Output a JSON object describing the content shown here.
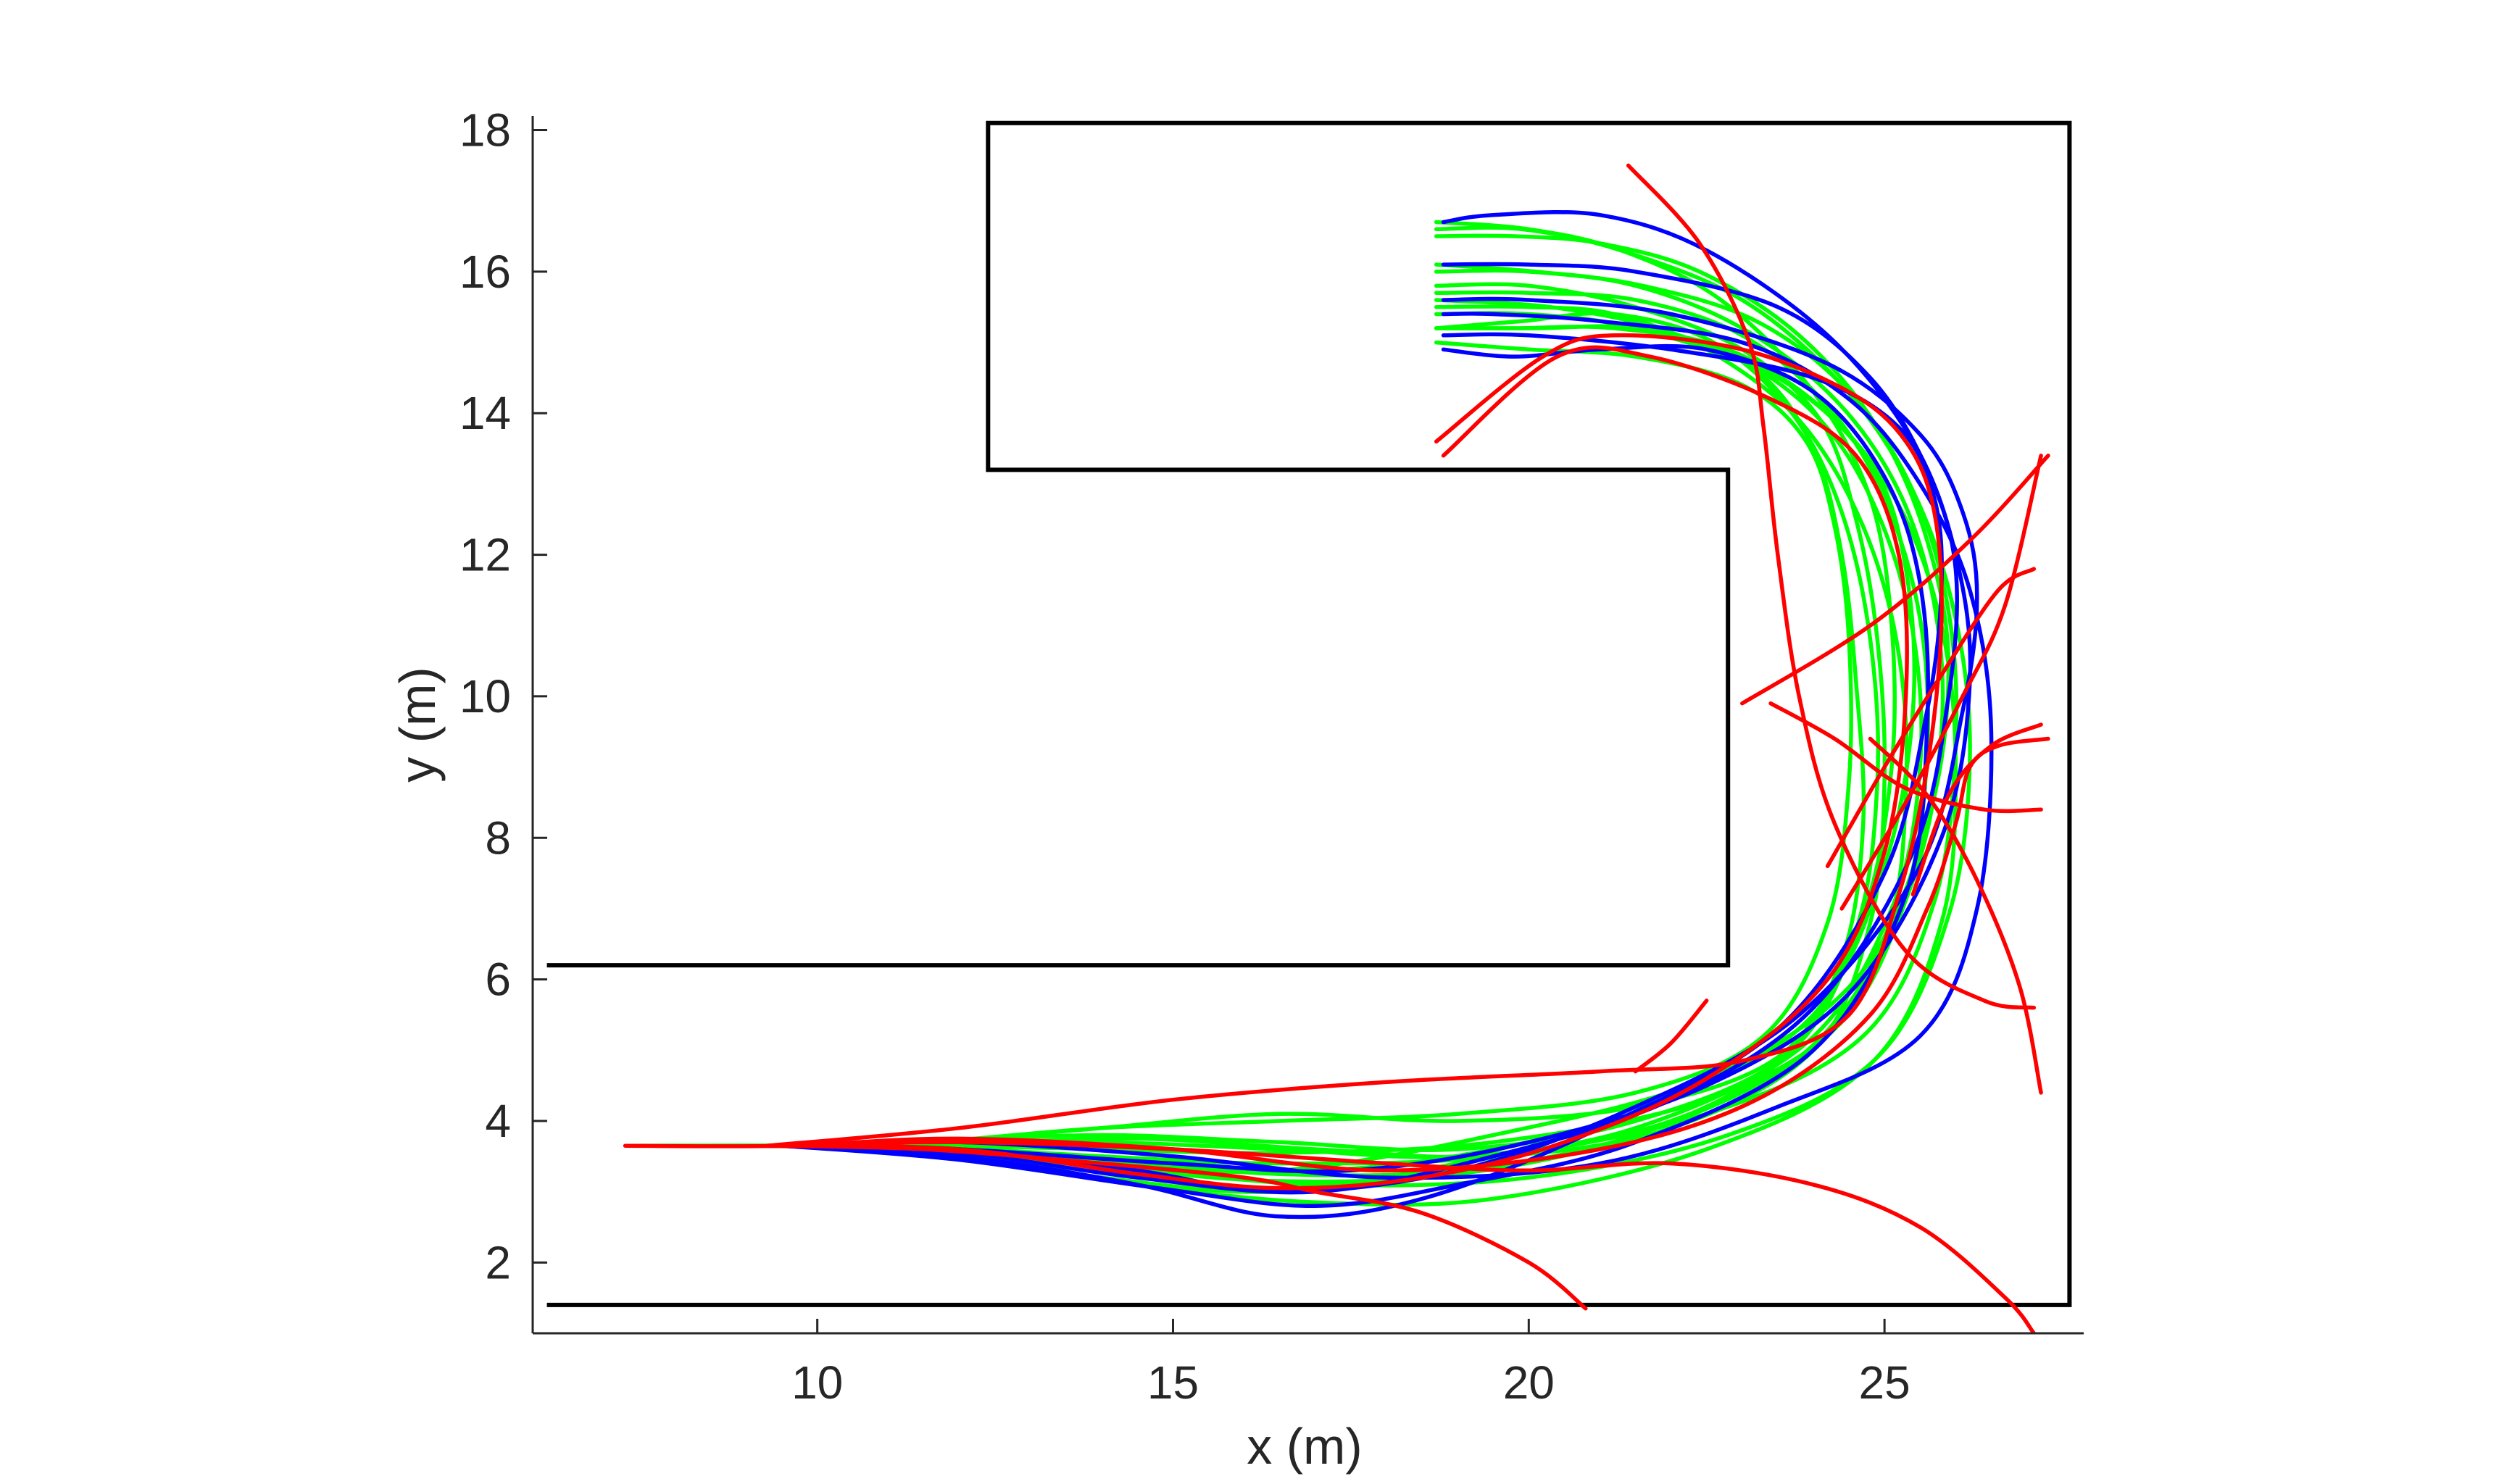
{
  "chart_data": {
    "type": "line",
    "xlabel": "x (m)",
    "ylabel": "y (m)",
    "xlim": [
      6,
      27.8
    ],
    "ylim": [
      1,
      18.2
    ],
    "xticks": [
      10,
      15,
      20,
      25
    ],
    "yticks": [
      2,
      4,
      6,
      8,
      10,
      12,
      14,
      16,
      18
    ],
    "grid": false,
    "colors": {
      "axis": "#262626",
      "wall": "#000000",
      "blue": "#0000ff",
      "green": "#00ff00",
      "red": "#ff0000"
    },
    "walls": [
      {
        "x": [
          6.2,
          22.8,
          22.8,
          12.4,
          12.4,
          27.6,
          27.6,
          6.2
        ],
        "y": [
          6.2,
          6.2,
          13.2,
          13.2,
          18.1,
          18.1,
          1.4,
          1.4
        ]
      }
    ],
    "series": [
      {
        "color": "blue",
        "x": [
          9.5,
          12,
          14.5,
          16.5,
          18.5,
          21,
          23.5,
          25,
          25.6,
          25.8,
          25.7,
          25.2,
          24,
          22,
          20,
          18.8
        ],
        "y": [
          3.65,
          3.5,
          3.1,
          2.65,
          2.9,
          3.9,
          5.3,
          7.5,
          9.8,
          11.5,
          12.8,
          13.8,
          14.5,
          14.9,
          15.1,
          15.1
        ]
      },
      {
        "color": "blue",
        "x": [
          9.5,
          12,
          14.5,
          16.5,
          19,
          21.5,
          23.8,
          25.5,
          26.1,
          26.3,
          26.1,
          25.5,
          24.2,
          22,
          20,
          18.8
        ],
        "y": [
          3.65,
          3.6,
          3.3,
          3.0,
          3.3,
          4.2,
          5.5,
          7.6,
          9.8,
          11.4,
          12.6,
          13.7,
          14.7,
          15.4,
          15.6,
          15.6
        ]
      },
      {
        "color": "blue",
        "x": [
          9.5,
          12,
          14.5,
          17,
          19.5,
          22,
          24,
          25.4,
          25.9,
          26.0,
          25.6,
          24.8,
          23.5,
          21.5,
          20,
          18.8
        ],
        "y": [
          3.65,
          3.55,
          3.2,
          3.0,
          3.5,
          4.3,
          5.6,
          7.8,
          10.0,
          11.8,
          13.2,
          14.5,
          15.5,
          16.0,
          16.1,
          16.1
        ]
      },
      {
        "color": "blue",
        "x": [
          9.5,
          12,
          15,
          17.5,
          20,
          22.5,
          24.5,
          25.8,
          26.2,
          26.0,
          25.4,
          24.2,
          22.5,
          21,
          19.5,
          18.8
        ],
        "y": [
          3.65,
          3.6,
          3.4,
          3.3,
          3.7,
          4.5,
          5.8,
          8.0,
          10.2,
          12.0,
          13.6,
          15.1,
          16.3,
          16.8,
          16.8,
          16.7
        ]
      },
      {
        "color": "blue",
        "x": [
          9.5,
          12,
          15,
          18,
          21,
          23.5,
          25.5,
          26.3,
          26.5,
          26.2,
          25.5,
          24.5,
          23,
          21,
          19.5,
          18.8
        ],
        "y": [
          3.65,
          3.7,
          3.5,
          3.2,
          3.4,
          4.2,
          5.2,
          7.0,
          9.5,
          11.5,
          13.0,
          14.2,
          15.0,
          15.3,
          15.4,
          15.4
        ]
      },
      {
        "color": "blue",
        "x": [
          9.5,
          12,
          14.8,
          17,
          19,
          21.5,
          24,
          25.3,
          25.6,
          25.5,
          25.0,
          24.0,
          22.5,
          21,
          19.8,
          18.8
        ],
        "y": [
          3.65,
          3.45,
          3.05,
          2.8,
          3.1,
          3.7,
          5.0,
          7.2,
          9.6,
          11.6,
          13.1,
          14.3,
          14.9,
          14.9,
          14.8,
          14.9
        ]
      },
      {
        "color": "green",
        "x": [
          7.4,
          10,
          12,
          14.5,
          17,
          19.5,
          22,
          24,
          25,
          25.4,
          25.3,
          24.8,
          23.5,
          21.5,
          20,
          18.7
        ],
        "y": [
          3.65,
          3.65,
          3.6,
          3.45,
          3.3,
          3.6,
          4.3,
          5.5,
          7.6,
          9.8,
          11.8,
          13.3,
          14.5,
          15.2,
          15.4,
          15.4
        ]
      },
      {
        "color": "green",
        "x": [
          9.3,
          11.5,
          14,
          16.5,
          19,
          21.5,
          23.3,
          24.2,
          24.5,
          24.5,
          24.3,
          23.9,
          23.0,
          21.5,
          20,
          18.7
        ],
        "y": [
          3.65,
          3.7,
          3.9,
          4.0,
          4.1,
          4.4,
          5.2,
          6.8,
          8.8,
          10.8,
          12.4,
          13.6,
          14.4,
          14.8,
          14.9,
          15.0
        ]
      },
      {
        "color": "green",
        "x": [
          9.3,
          11.5,
          14,
          16.5,
          19,
          22,
          24.3,
          25.4,
          25.8,
          25.7,
          25.2,
          24.3,
          23.0,
          21.5,
          20,
          18.7
        ],
        "y": [
          3.65,
          3.6,
          3.2,
          3.0,
          3.4,
          4.0,
          5.3,
          7.4,
          9.5,
          11.3,
          12.9,
          14.2,
          15.2,
          15.8,
          16.0,
          16.0
        ]
      },
      {
        "color": "green",
        "x": [
          9.3,
          11.5,
          14,
          16.5,
          19.5,
          22.5,
          24.6,
          25.6,
          25.9,
          25.6,
          24.9,
          23.8,
          22.4,
          21,
          19.8,
          18.7
        ],
        "y": [
          3.65,
          3.62,
          3.4,
          3.3,
          3.8,
          4.6,
          6.0,
          8.2,
          10.4,
          12.2,
          13.8,
          15.1,
          16.0,
          16.4,
          16.5,
          16.5
        ]
      },
      {
        "color": "green",
        "x": [
          9.3,
          12,
          14.5,
          17,
          19.5,
          22,
          24.0,
          24.8,
          25.0,
          24.9,
          24.6,
          24.1,
          23.0,
          21.5,
          20,
          18.7
        ],
        "y": [
          3.65,
          3.68,
          3.75,
          3.6,
          3.5,
          3.9,
          5.0,
          6.8,
          8.8,
          10.8,
          12.5,
          13.9,
          14.9,
          15.5,
          15.8,
          15.8
        ]
      },
      {
        "color": "green",
        "x": [
          9.3,
          12,
          14.5,
          17,
          19.5,
          22.5,
          24.8,
          25.8,
          26.0,
          25.8,
          25.2,
          24.2,
          22.8,
          21.2,
          19.8,
          18.7
        ],
        "y": [
          3.65,
          3.55,
          3.1,
          2.85,
          2.9,
          3.6,
          4.8,
          6.8,
          9.0,
          11.0,
          12.7,
          14.0,
          14.9,
          15.2,
          15.2,
          15.2
        ]
      },
      {
        "color": "green",
        "x": [
          9.3,
          11.5,
          14,
          16.5,
          19,
          21.5,
          23.7,
          24.7,
          25.1,
          25.1,
          24.8,
          24.0,
          22.7,
          21.3,
          20,
          18.7
        ],
        "y": [
          3.65,
          3.7,
          3.8,
          3.7,
          3.6,
          4.0,
          5.0,
          6.9,
          9.0,
          11.0,
          12.8,
          14.3,
          15.6,
          16.3,
          16.6,
          16.7
        ]
      },
      {
        "color": "green",
        "x": [
          9.3,
          11.5,
          14,
          16.5,
          19,
          21.5,
          23.8,
          25.0,
          25.3,
          25.2,
          24.7,
          23.8,
          22.5,
          21.2,
          20,
          18.7
        ],
        "y": [
          3.65,
          3.6,
          3.45,
          3.25,
          3.3,
          3.8,
          4.9,
          6.6,
          8.6,
          10.6,
          12.4,
          13.9,
          14.9,
          15.4,
          15.5,
          15.5
        ]
      },
      {
        "color": "green",
        "x": [
          9.3,
          11.5,
          14,
          16.5,
          19.5,
          22.5,
          24.4,
          25.3,
          25.6,
          25.5,
          25.0,
          24.2,
          23.0,
          21.5,
          20,
          18.7
        ],
        "y": [
          3.65,
          3.66,
          3.6,
          3.55,
          3.7,
          4.3,
          5.4,
          7.2,
          9.2,
          11.1,
          12.8,
          14.1,
          15.1,
          15.6,
          15.7,
          15.7
        ]
      },
      {
        "color": "green",
        "x": [
          9.3,
          11.5,
          14,
          16.5,
          19,
          21.5,
          23.5,
          24.4,
          24.7,
          24.6,
          24.4,
          24.0,
          23.2,
          21.8,
          20.3,
          18.7
        ],
        "y": [
          3.65,
          3.7,
          3.9,
          4.1,
          4.0,
          4.2,
          4.9,
          6.3,
          8.2,
          10.2,
          12.0,
          13.5,
          14.6,
          15.2,
          15.5,
          15.6
        ]
      },
      {
        "color": "green",
        "x": [
          9.3,
          12,
          14.5,
          17,
          20,
          22.8,
          24.9,
          25.9,
          26.2,
          26.0,
          25.4,
          24.4,
          23.0,
          21.3,
          19.9,
          18.7
        ],
        "y": [
          3.65,
          3.62,
          3.35,
          3.1,
          3.2,
          3.8,
          4.9,
          6.9,
          9.1,
          11.1,
          12.9,
          14.4,
          15.6,
          16.3,
          16.6,
          16.6
        ]
      },
      {
        "color": "green",
        "x": [
          9.3,
          11.5,
          14,
          16.5,
          19,
          21.5,
          23.6,
          24.6,
          24.9,
          24.8,
          24.4,
          23.7,
          22.6,
          21.2,
          19.9,
          18.7
        ],
        "y": [
          3.65,
          3.6,
          3.35,
          3.15,
          3.25,
          3.8,
          4.9,
          6.7,
          8.8,
          10.8,
          12.6,
          14.0,
          15.0,
          15.4,
          15.3,
          15.2
        ]
      },
      {
        "color": "green",
        "x": [
          9.3,
          11.5,
          14,
          16.5,
          19.5,
          22.5,
          24.7,
          25.7,
          26.0,
          25.9,
          25.4,
          24.5,
          23.2,
          21.6,
          20.1,
          18.7
        ],
        "y": [
          3.65,
          3.64,
          3.5,
          3.4,
          3.5,
          4.1,
          5.2,
          7.1,
          9.3,
          11.2,
          12.9,
          14.3,
          15.3,
          15.8,
          16.0,
          16.1
        ]
      },
      {
        "color": "green",
        "x": [
          9.3,
          11.5,
          14,
          16.5,
          19,
          21.5,
          23.9,
          25.1,
          25.5,
          25.4,
          24.9,
          24.1,
          22.9,
          21.5,
          20.1,
          18.7
        ],
        "y": [
          3.65,
          3.68,
          3.7,
          3.6,
          3.5,
          3.9,
          5.1,
          7.0,
          9.0,
          10.9,
          12.6,
          13.9,
          14.8,
          15.2,
          15.2,
          15.2
        ]
      },
      {
        "color": "red",
        "x": [
          7.3,
          9.5,
          12,
          15,
          18,
          21,
          23.2,
          24.8,
          25.6,
          26.0,
          26.2,
          26.6,
          27.3
        ],
        "y": [
          3.65,
          3.65,
          3.75,
          3.6,
          3.3,
          3.6,
          4.3,
          5.5,
          7.0,
          8.2,
          9.0,
          9.3,
          9.4
        ]
      },
      {
        "color": "red",
        "x": [
          9.3,
          11.5,
          14,
          16,
          17,
          18.5,
          20,
          20.8
        ],
        "y": [
          3.65,
          3.6,
          3.4,
          3.2,
          3.0,
          2.7,
          2.0,
          1.35
        ]
      },
      {
        "color": "red",
        "x": [
          9.3,
          12,
          15,
          18,
          20,
          22,
          24,
          25.5,
          26.7,
          27.1
        ],
        "y": [
          3.65,
          3.7,
          3.6,
          3.4,
          3.3,
          3.4,
          3.1,
          2.5,
          1.5,
          1.0
        ]
      },
      {
        "color": "red",
        "x": [
          9.3,
          12,
          15,
          18,
          21,
          23,
          24.5,
          25.2,
          25.6,
          25.8,
          25.7,
          25.3,
          24.5,
          23.0,
          21.2,
          20.2,
          18.7
        ],
        "y": [
          3.65,
          3.9,
          4.3,
          4.55,
          4.7,
          4.85,
          5.5,
          7.2,
          9.0,
          11.0,
          12.6,
          13.6,
          14.3,
          14.9,
          15.1,
          14.8,
          13.6
        ]
      },
      {
        "color": "red",
        "x": [
          9.3,
          12,
          14.5,
          16.5,
          18.5,
          20.5,
          22.5,
          24.2,
          25.0,
          25.3,
          25.2,
          24.6,
          23.4,
          21.7,
          20.4,
          18.8
        ],
        "y": [
          3.65,
          3.6,
          3.25,
          3.05,
          3.2,
          3.7,
          4.6,
          6.0,
          7.8,
          10.0,
          12.0,
          13.4,
          14.2,
          14.8,
          14.8,
          13.4
        ]
      },
      {
        "color": "red",
        "x": [
          21.4,
          22.4,
          23.1,
          23.3,
          23.5,
          23.8,
          24.3,
          25.3,
          26.4,
          27.1
        ],
        "y": [
          17.5,
          16.4,
          15.0,
          13.8,
          12.0,
          10.0,
          8.2,
          6.4,
          5.7,
          5.6
        ]
      },
      {
        "color": "red",
        "x": [
          23.4,
          24.3,
          25.3,
          26.4,
          27.2
        ],
        "y": [
          9.9,
          9.4,
          8.7,
          8.4,
          8.4
        ]
      },
      {
        "color": "red",
        "x": [
          24.8,
          25.6,
          26.3,
          26.9,
          27.2
        ],
        "y": [
          9.4,
          8.6,
          7.4,
          5.9,
          4.4
        ]
      },
      {
        "color": "red",
        "x": [
          24.2,
          25.0,
          25.8,
          26.6,
          27.1
        ],
        "y": [
          7.6,
          9.0,
          10.3,
          11.5,
          11.8
        ]
      },
      {
        "color": "red",
        "x": [
          24.4,
          25.3,
          26.1,
          26.7,
          27.2
        ],
        "y": [
          7.0,
          8.5,
          10.0,
          11.3,
          13.4
        ]
      },
      {
        "color": "red",
        "x": [
          25.4,
          25.9,
          26.5,
          27.2
        ],
        "y": [
          7.2,
          8.6,
          9.3,
          9.6
        ]
      },
      {
        "color": "red",
        "x": [
          21.5,
          22.0,
          22.5
        ],
        "y": [
          4.7,
          5.1,
          5.7
        ]
      },
      {
        "color": "red",
        "x": [
          23.0,
          24.8,
          26.2,
          27.3
        ],
        "y": [
          9.9,
          11.0,
          12.2,
          13.4
        ]
      }
    ]
  }
}
